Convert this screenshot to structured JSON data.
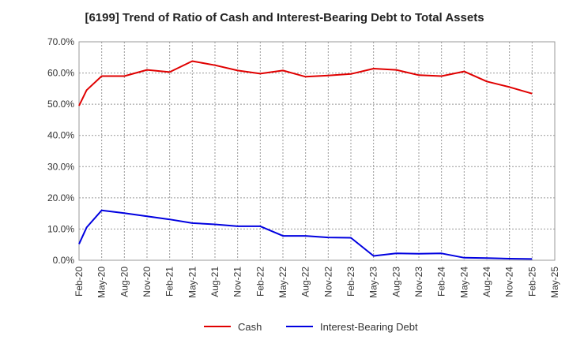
{
  "chart_data": {
    "type": "line",
    "title": "[6199]  Trend of Ratio of Cash and Interest-Bearing Debt to Total Assets",
    "xlabel": "",
    "ylabel": "",
    "ylim": [
      0,
      70
    ],
    "y_ticks": [
      "0.0%",
      "10.0%",
      "20.0%",
      "30.0%",
      "40.0%",
      "50.0%",
      "60.0%",
      "70.0%"
    ],
    "x_ticks": [
      "Feb-20",
      "May-20",
      "Aug-20",
      "Nov-20",
      "Feb-21",
      "May-21",
      "Aug-21",
      "Nov-21",
      "Feb-22",
      "May-22",
      "Aug-22",
      "Nov-22",
      "Feb-23",
      "May-23",
      "Aug-23",
      "Nov-23",
      "Feb-24",
      "May-24",
      "Aug-24",
      "Nov-24",
      "Feb-25",
      "May-25"
    ],
    "grid": true,
    "legend_position": "bottom",
    "series": [
      {
        "name": "Cash",
        "color": "#e00000",
        "x": [
          "Feb-20",
          "Mar-20",
          "May-20",
          "Aug-20",
          "Nov-20",
          "Feb-21",
          "May-21",
          "Aug-21",
          "Nov-21",
          "Feb-22",
          "May-22",
          "Aug-22",
          "Nov-22",
          "Feb-23",
          "May-23",
          "Aug-23",
          "Nov-23",
          "Feb-24",
          "May-24",
          "Aug-24",
          "Nov-24",
          "Feb-25"
        ],
        "values": [
          49.5,
          54.5,
          59.0,
          59.0,
          61.0,
          60.3,
          63.8,
          62.5,
          60.8,
          59.8,
          60.8,
          58.8,
          59.2,
          59.7,
          61.4,
          61.0,
          59.3,
          59.0,
          60.5,
          57.3,
          55.5,
          53.4
        ]
      },
      {
        "name": "Interest-Bearing Debt",
        "color": "#0000e0",
        "x": [
          "Feb-20",
          "Mar-20",
          "May-20",
          "Aug-20",
          "Nov-20",
          "Feb-21",
          "May-21",
          "Aug-21",
          "Nov-21",
          "Feb-22",
          "May-22",
          "Aug-22",
          "Nov-22",
          "Feb-23",
          "May-23",
          "Aug-23",
          "Nov-23",
          "Feb-24",
          "May-24",
          "Aug-24",
          "Nov-24",
          "Feb-25"
        ],
        "values": [
          5.2,
          10.5,
          16.0,
          15.1,
          14.1,
          13.1,
          11.9,
          11.5,
          10.9,
          10.9,
          7.8,
          7.8,
          7.3,
          7.2,
          1.4,
          2.2,
          2.1,
          2.2,
          0.8,
          0.7,
          0.5,
          0.4
        ]
      }
    ]
  }
}
